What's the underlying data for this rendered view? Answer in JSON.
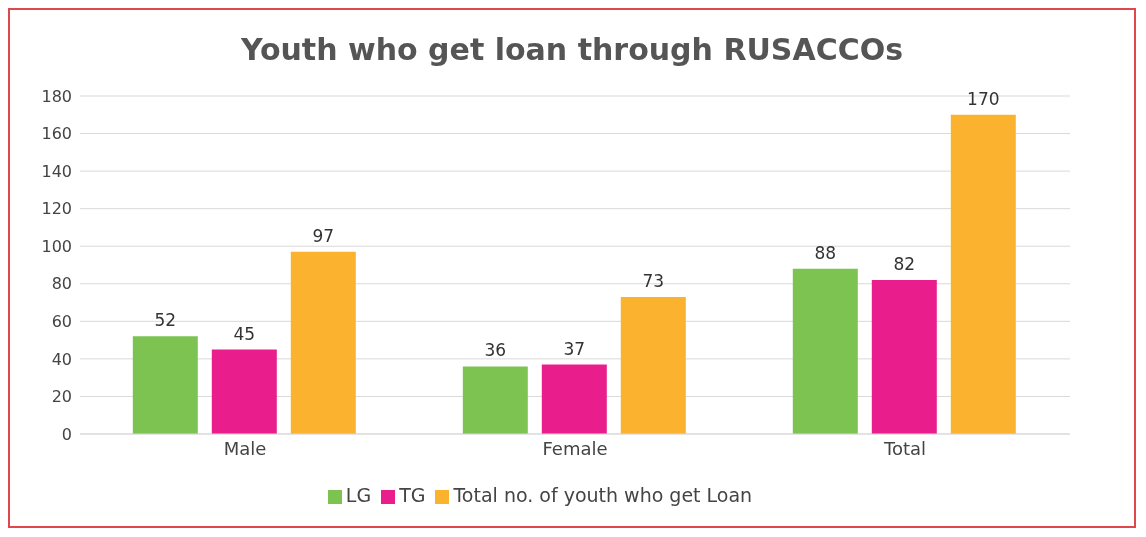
{
  "chart_data": {
    "type": "bar",
    "title": "Youth who get loan through RUSACCOs",
    "categories": [
      "Male",
      "Female",
      "Total"
    ],
    "series": [
      {
        "name": "LG",
        "color": "#7dc352",
        "values": [
          52,
          36,
          88
        ]
      },
      {
        "name": "TG",
        "color": "#e91e8c",
        "values": [
          45,
          37,
          82
        ]
      },
      {
        "name": "Total no. of youth who get Loan",
        "color": "#fbb32f",
        "values": [
          97,
          73,
          170
        ]
      }
    ],
    "ylim": [
      0,
      180
    ],
    "yticks": [
      0,
      20,
      40,
      60,
      80,
      100,
      120,
      140,
      160,
      180
    ],
    "grid": "y",
    "legend": "bottom",
    "data_labels": true
  }
}
